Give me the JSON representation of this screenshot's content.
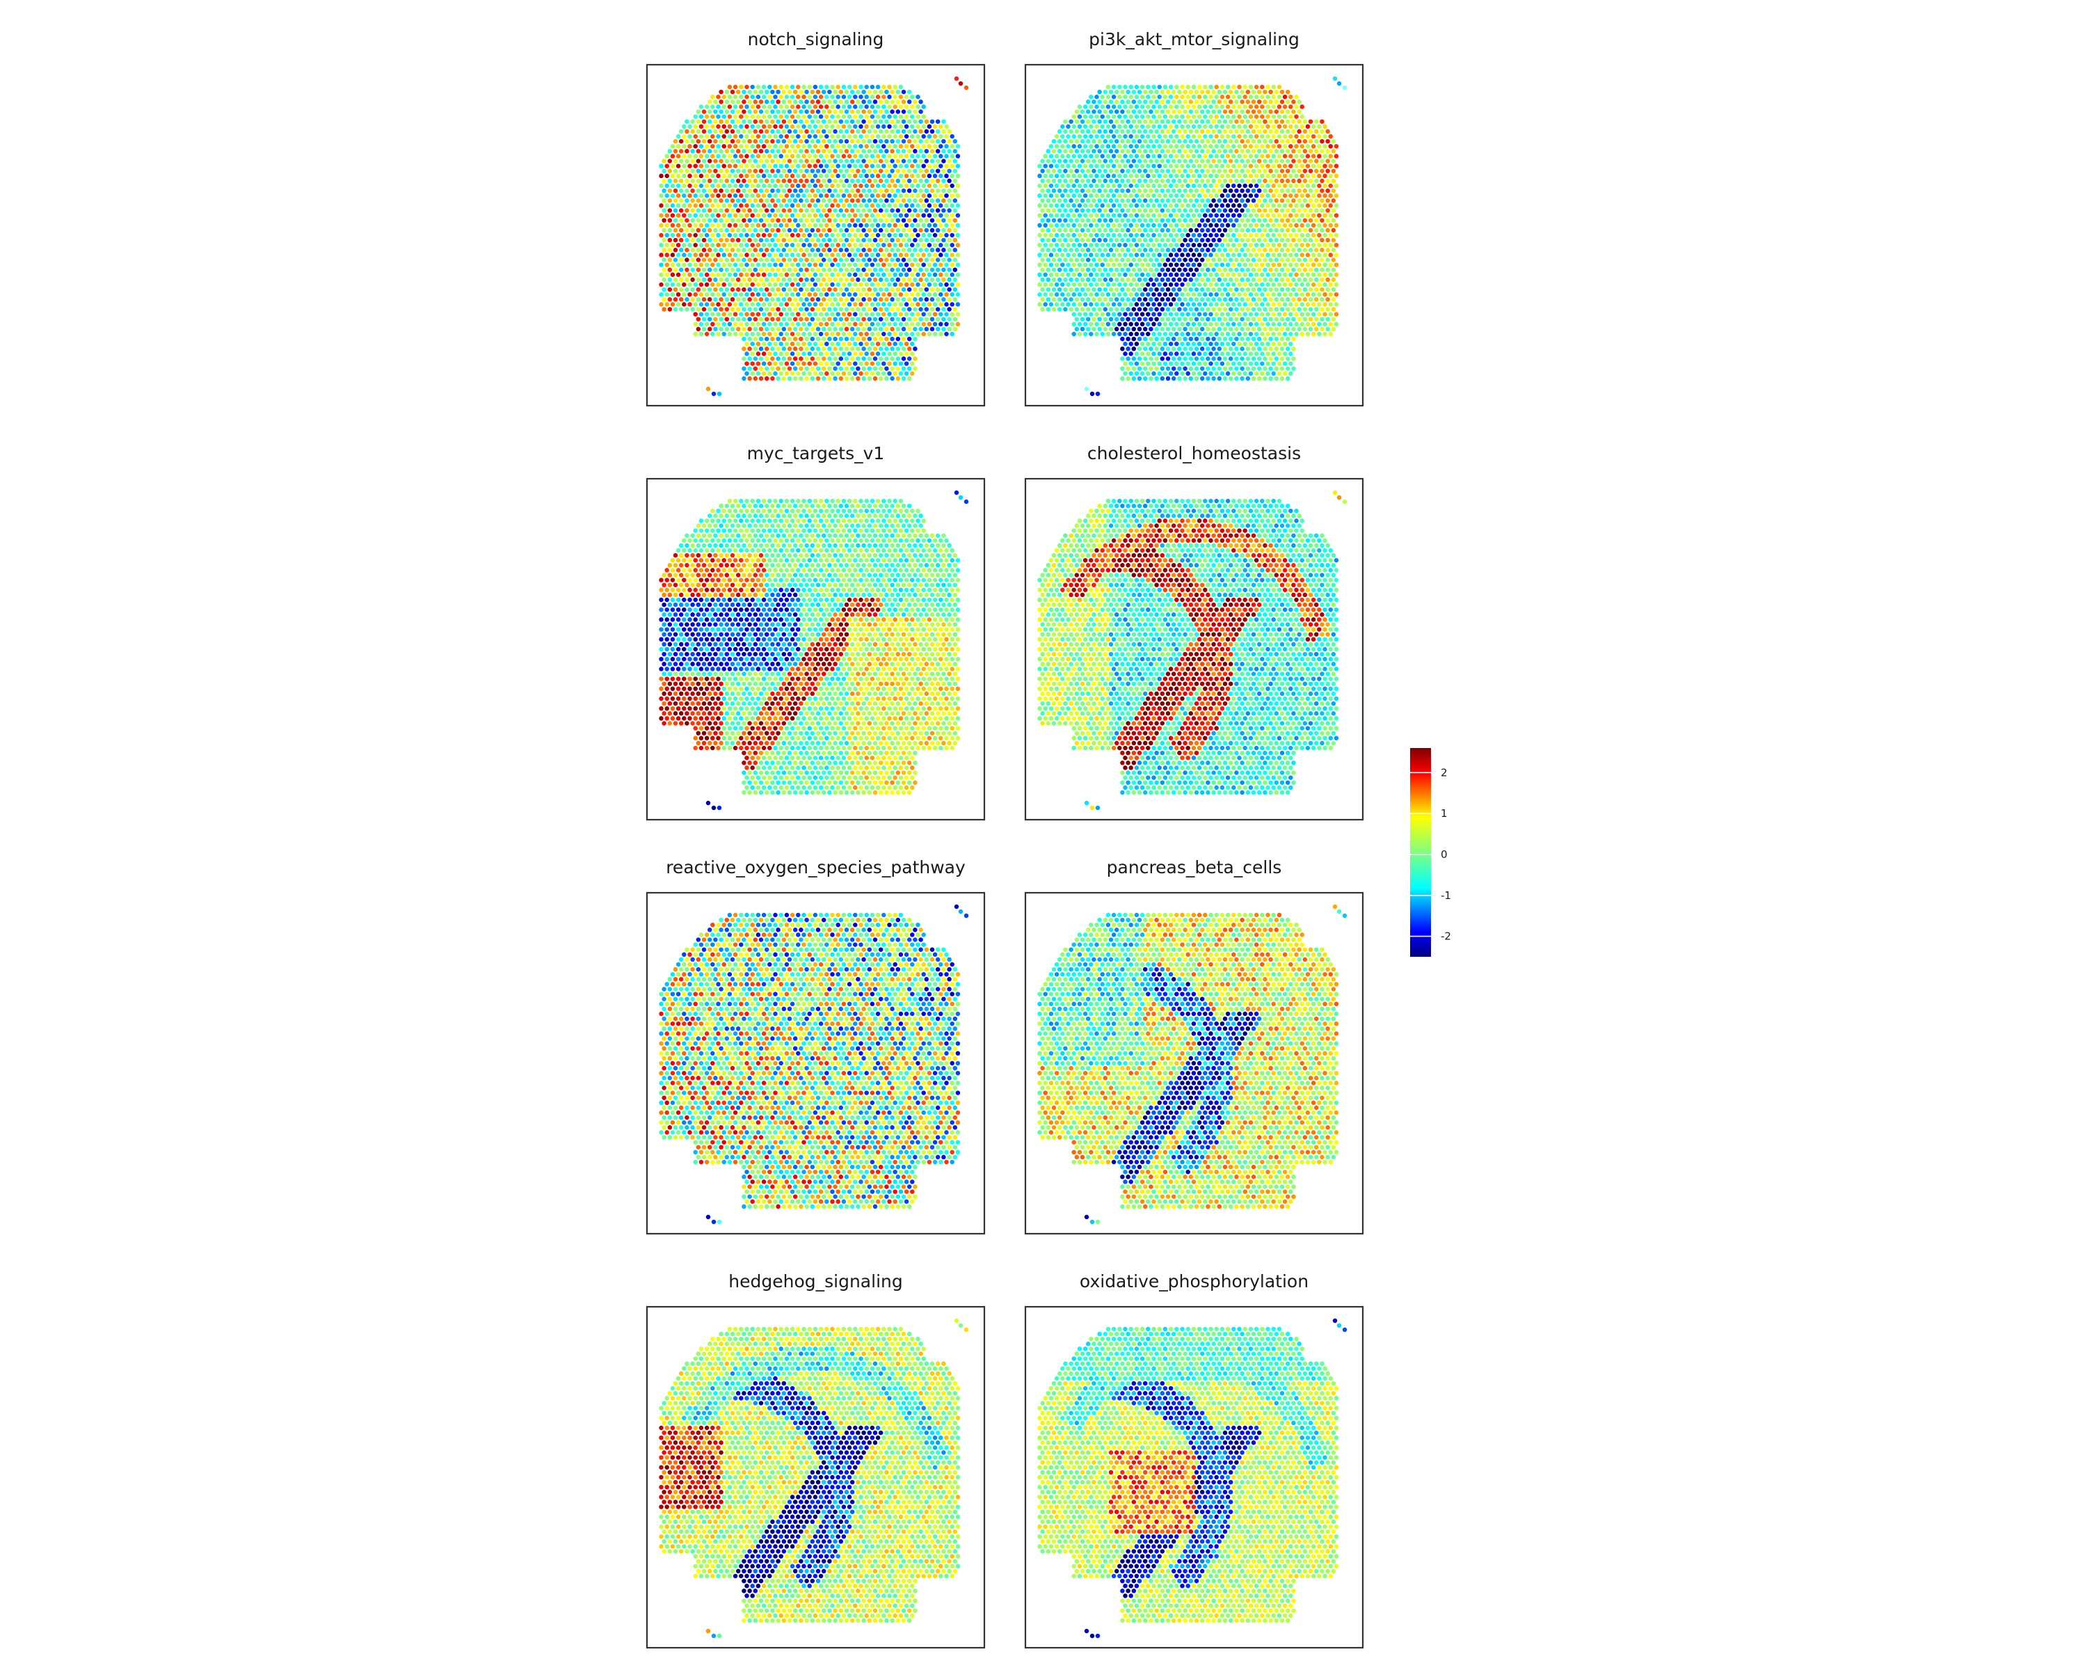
{
  "chart_data": {
    "type": "heatmap",
    "subtype": "spatial-spot-map",
    "layout": {
      "rows": 4,
      "cols": 2
    },
    "panels": [
      {
        "title": "notch_signaling",
        "pattern": "noisy, scattered red clusters on the left cortex, cooler blue speckles across centre",
        "fiducial_colors": [
          "#e8261e",
          "#c40000",
          "#ff6000"
        ],
        "fiducial_bottom_colors": [
          "#ff9a00",
          "#0026ff",
          "#00c8ff"
        ]
      },
      {
        "title": "pi3k_akt_mtor_signaling",
        "pattern": "red/orange outer cortex on right and top, dark blue hippocampal band through centre",
        "fiducial_colors": [
          "#2ad7ff",
          "#00a8ff",
          "#80ffff"
        ],
        "fiducial_bottom_colors": [
          "#7fffff",
          "#0000c8",
          "#0018ff"
        ]
      },
      {
        "title": "myc_targets_v1",
        "pattern": "dark blue left-central region, dark red lower-left and lower hippocampal arc",
        "fiducial_colors": [
          "#0018ff",
          "#00d8ff",
          "#0038ff"
        ],
        "fiducial_bottom_colors": [
          "#0000c0",
          "#0000a0",
          "#0020ff"
        ]
      },
      {
        "title": "cholesterol_homeostasis",
        "pattern": "dark red hippocampal arc, cyan/blue outer cortex, mixed left region",
        "fiducial_colors": [
          "#ffee00",
          "#ff9000",
          "#c0ff40"
        ],
        "fiducial_bottom_colors": [
          "#00e8ff",
          "#ffea00",
          "#00a0ff"
        ]
      },
      {
        "title": "reactive_oxygen_species_pathway",
        "pattern": "noisy mixture, orange clusters lower-left, blue speckles across right side",
        "fiducial_colors": [
          "#0000c8",
          "#00b0ff",
          "#0040ff"
        ],
        "fiducial_bottom_colors": [
          "#0000c8",
          "#0028ff",
          "#4affff"
        ]
      },
      {
        "title": "pancreas_beta_cells",
        "pattern": "dark blue hippocampal band, orange/yellow surrounding cortex",
        "fiducial_colors": [
          "#ffa800",
          "#40ffc0",
          "#00c8ff"
        ],
        "fiducial_bottom_colors": [
          "#0000c0",
          "#00c8ff",
          "#80ff80"
        ]
      },
      {
        "title": "hedgehog_signaling",
        "pattern": "dark blue hippocampal band, red left cortex, cyan top arc",
        "fiducial_colors": [
          "#d8ff20",
          "#80ff80",
          "#ffdd00"
        ],
        "fiducial_bottom_colors": [
          "#ff9a00",
          "#00a0ff",
          "#60ff90"
        ]
      },
      {
        "title": "oxidative_phosphorylation",
        "pattern": "dark blue hippocampal band, orange left-centre, yellow/cyan elsewhere",
        "fiducial_colors": [
          "#0000c8",
          "#00d8ff",
          "#0048ff"
        ],
        "fiducial_bottom_colors": [
          "#0000c8",
          "#0000a0",
          "#0018ff"
        ]
      }
    ],
    "colorbar": {
      "ticks": [
        2,
        1,
        0,
        -1,
        -2
      ],
      "tick_labels": [
        "2",
        "1",
        "0",
        "-1",
        "-2"
      ],
      "range": [
        -2.5,
        2.6
      ],
      "colormap": "jet"
    }
  }
}
